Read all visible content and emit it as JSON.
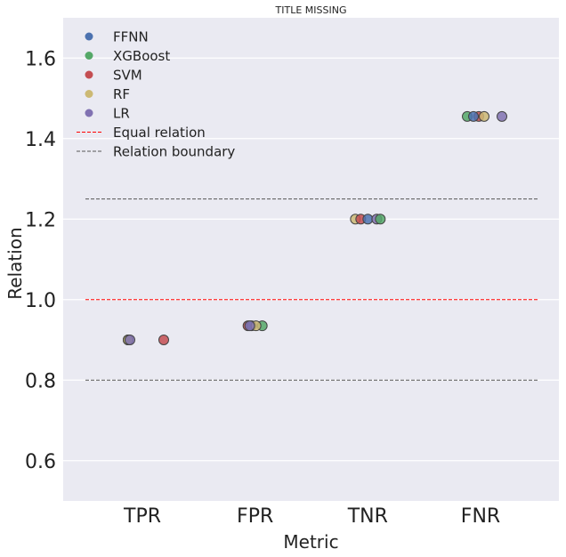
{
  "chart_data": {
    "type": "scatter",
    "title": "TITLE MISSING",
    "xlabel": "Metric",
    "ylabel": "Relation",
    "categories": [
      "TPR",
      "FPR",
      "TNR",
      "FNR"
    ],
    "ylim": [
      0.5,
      1.7
    ],
    "yticks": [
      0.6,
      0.8,
      1.0,
      1.2,
      1.4,
      1.6
    ],
    "ytick_labels": [
      "0.6",
      "0.8",
      "1.0",
      "1.2",
      "1.4",
      "1.6"
    ],
    "grid": true,
    "legend_position": "top-left",
    "background_color": "#eaeaf2",
    "series": [
      {
        "name": "FFNN",
        "color": "#4c72b0",
        "values": [
          0.9,
          0.935,
          1.2,
          1.455
        ]
      },
      {
        "name": "XGBoost",
        "color": "#55a868",
        "values": [
          0.9,
          0.935,
          1.2,
          1.455
        ]
      },
      {
        "name": "SVM",
        "color": "#c44e52",
        "values": [
          0.9,
          0.935,
          1.2,
          1.455
        ]
      },
      {
        "name": "RF",
        "color": "#ccb974",
        "values": [
          0.9,
          0.935,
          1.2,
          1.455
        ]
      },
      {
        "name": "LR",
        "color": "#8172b2",
        "values": [
          0.9,
          0.935,
          1.2,
          1.455
        ]
      }
    ],
    "reference_lines": [
      {
        "name": "Equal relation",
        "y": 1.0,
        "color": "#ff0000",
        "style": "dashed"
      },
      {
        "name": "Relation boundary",
        "y": 1.25,
        "color": "#555555",
        "style": "dashed"
      },
      {
        "name": "Relation boundary",
        "y": 0.8,
        "color": "#555555",
        "style": "dashed",
        "in_legend": false
      }
    ]
  }
}
